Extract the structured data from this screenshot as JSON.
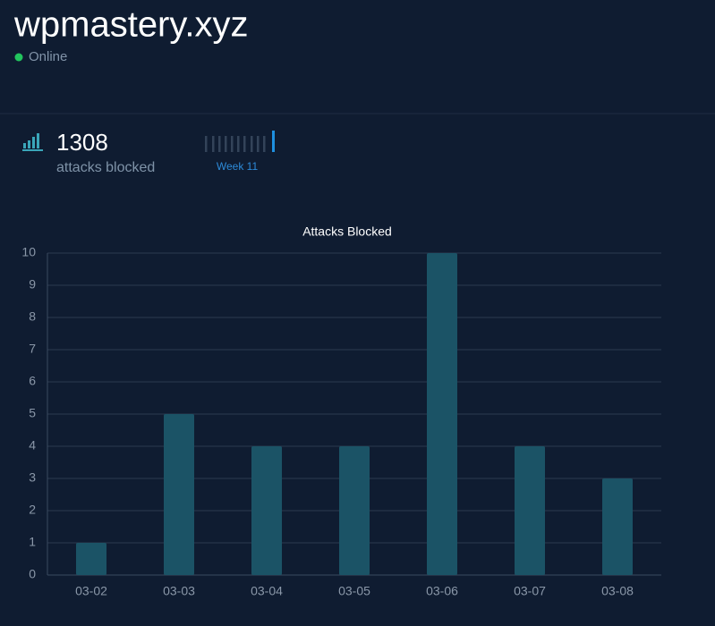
{
  "header": {
    "title": "wpmastery.xyz",
    "status": "Online"
  },
  "stats": {
    "value": 1308,
    "label": "attacks blocked",
    "week": "Week 11"
  },
  "chart_data": {
    "type": "bar",
    "title": "Attacks Blocked",
    "categories": [
      "03-02",
      "03-03",
      "03-04",
      "03-05",
      "03-06",
      "03-07",
      "03-08"
    ],
    "values": [
      1,
      5,
      4,
      4,
      10,
      4,
      3
    ],
    "color": "#1b5366",
    "ylim": [
      0,
      10
    ],
    "yticks": [
      0,
      1,
      2,
      3,
      4,
      5,
      6,
      7,
      8,
      9,
      10
    ],
    "grid": true
  }
}
